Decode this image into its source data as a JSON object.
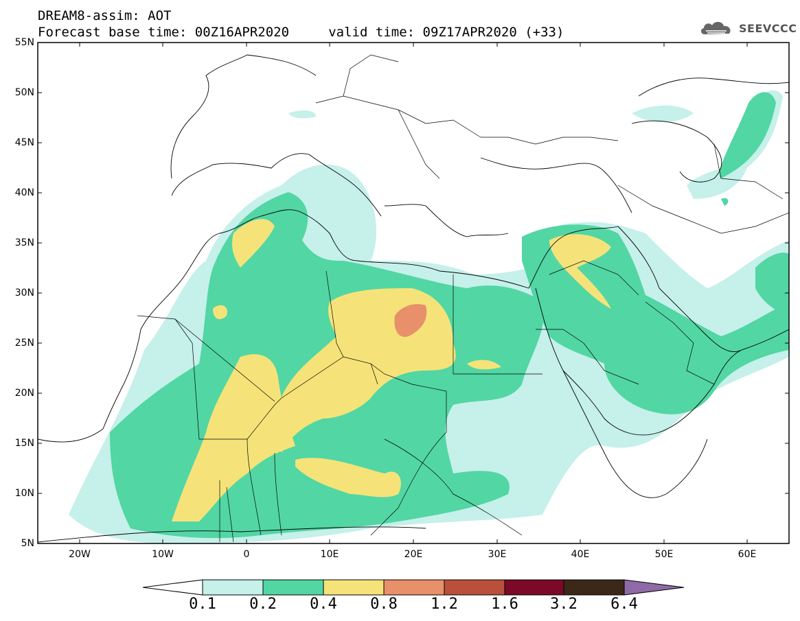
{
  "title": {
    "line1": "DREAM8-assim: AOT",
    "line2": "Forecast base time: 00Z16APR2020     valid time: 09Z17APR2020 (+33)"
  },
  "logo": {
    "text": "SEEVCCC",
    "icon": "cloud-icon"
  },
  "map": {
    "lon_range": [
      -25,
      65
    ],
    "lat_range": [
      5,
      55
    ],
    "lat_ticks": [
      "55N",
      "50N",
      "45N",
      "40N",
      "35N",
      "30N",
      "25N",
      "20N",
      "15N",
      "10N",
      "5N"
    ],
    "lon_ticks": [
      "20W",
      "10W",
      "0",
      "10E",
      "20E",
      "30E",
      "40E",
      "50E",
      "60E"
    ]
  },
  "colorbar": {
    "labels": [
      "0.1",
      "0.2",
      "0.4",
      "0.8",
      "1.2",
      "1.6",
      "3.2",
      "6.4"
    ],
    "colors": [
      "#ffffff",
      "#c6f0ea",
      "#52d6a4",
      "#f5e37a",
      "#e8906a",
      "#b8503c",
      "#7a0a28",
      "#3c2818",
      "#8e6aa6"
    ]
  }
}
